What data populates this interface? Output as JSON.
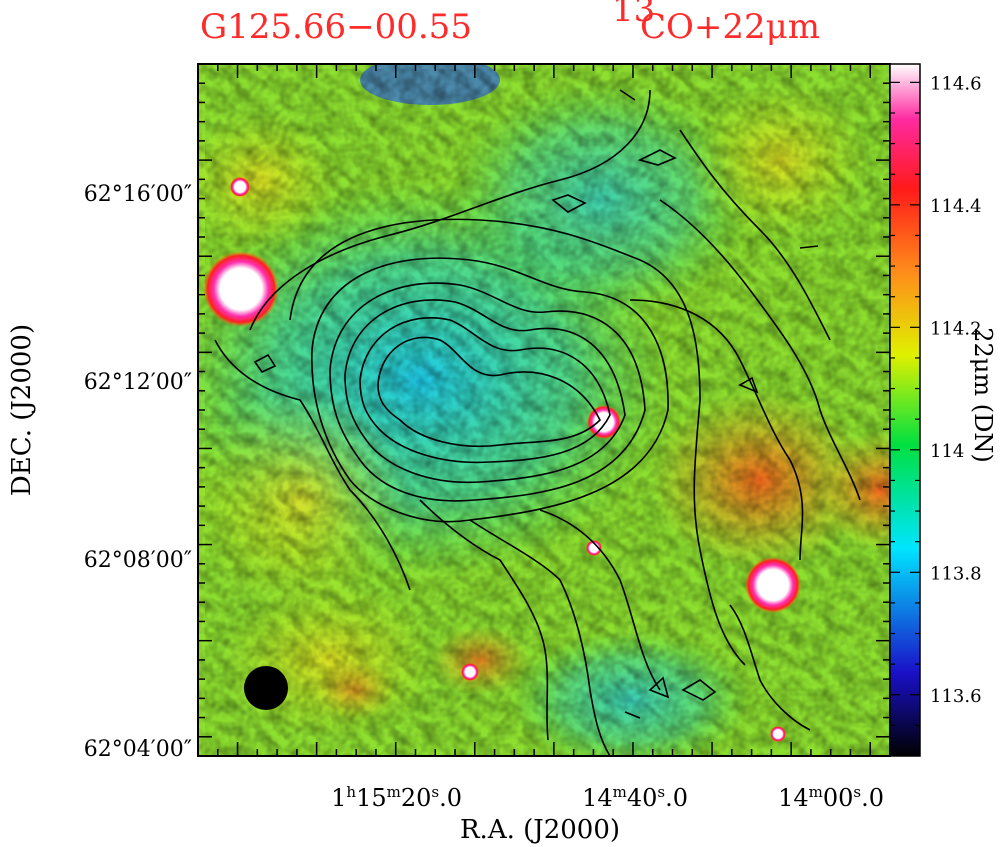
{
  "header": {
    "source_name": "G125.66−00.55",
    "tracer_sup": "13",
    "tracer_main": "CO+22μm"
  },
  "chart_data": {
    "type": "heatmap",
    "title": "G125.66−00.55",
    "subtitle": "13CO+22μm",
    "xlabel": "R.A.  (J2000)",
    "ylabel": "DEC.  (J2000)",
    "colorbar_label": "22μm (DN)",
    "colorbar_range": [
      113.5,
      114.63
    ],
    "colorbar_ticks": [
      {
        "value": 113.6,
        "label": "113.6"
      },
      {
        "value": 113.8,
        "label": "113.8"
      },
      {
        "value": 114.0,
        "label": "114"
      },
      {
        "value": 114.2,
        "label": "114.2"
      },
      {
        "value": 114.4,
        "label": "114.4"
      },
      {
        "value": 114.6,
        "label": "114.6"
      }
    ],
    "x_ticks": [
      {
        "h": "1",
        "m": "15",
        "s": "20",
        "frac": ".0"
      },
      {
        "h": "",
        "m": "14",
        "s": "40",
        "frac": ".0"
      },
      {
        "h": "",
        "m": "14",
        "s": "00",
        "frac": ".0"
      }
    ],
    "y_ticks": [
      "62°04′00″",
      "62°08′00″",
      "62°12′00″",
      "62°16′00″"
    ],
    "overlay": "13CO integrated intensity contours (black)",
    "beam": "filled black circle, lower-left",
    "colormap": [
      "#000000",
      "#1a10c8",
      "#00e5ff",
      "#00e040",
      "#e0f000",
      "#ff8c1a",
      "#ff1a1a",
      "#ff2aa0",
      "#ffffff"
    ],
    "grid": false
  }
}
